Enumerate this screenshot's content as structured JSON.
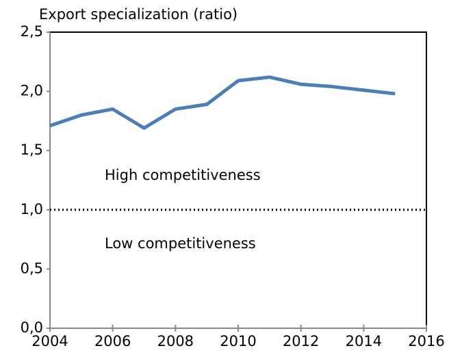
{
  "chart_data": {
    "type": "line",
    "y_axis_label": "Export specialization (ratio)",
    "x": [
      2004,
      2005,
      2006,
      2007,
      2008,
      2009,
      2010,
      2011,
      2012,
      2013,
      2014,
      2015
    ],
    "series": [
      {
        "name": "Export specialization",
        "color": "#4a7ebb",
        "values": [
          1.71,
          1.8,
          1.85,
          1.69,
          1.85,
          1.89,
          2.09,
          2.12,
          2.06,
          2.04,
          2.01,
          1.98
        ]
      }
    ],
    "xlim": [
      2004,
      2016
    ],
    "xticks": [
      2004,
      2006,
      2008,
      2010,
      2012,
      2014,
      2016
    ],
    "ylim": [
      0,
      2.5
    ],
    "yticks": [
      {
        "value": 0,
        "label": "0,0"
      },
      {
        "value": 0.5,
        "label": "0,5"
      },
      {
        "value": 1,
        "label": "1,0"
      },
      {
        "value": 1.5,
        "label": "1,5"
      },
      {
        "value": 2,
        "label": "2,0"
      },
      {
        "value": 2.5,
        "label": "2,5"
      }
    ],
    "reference_line": 1,
    "annotations": [
      "High competitiveness",
      "Low competitiveness"
    ],
    "legend": false,
    "grid": false
  }
}
